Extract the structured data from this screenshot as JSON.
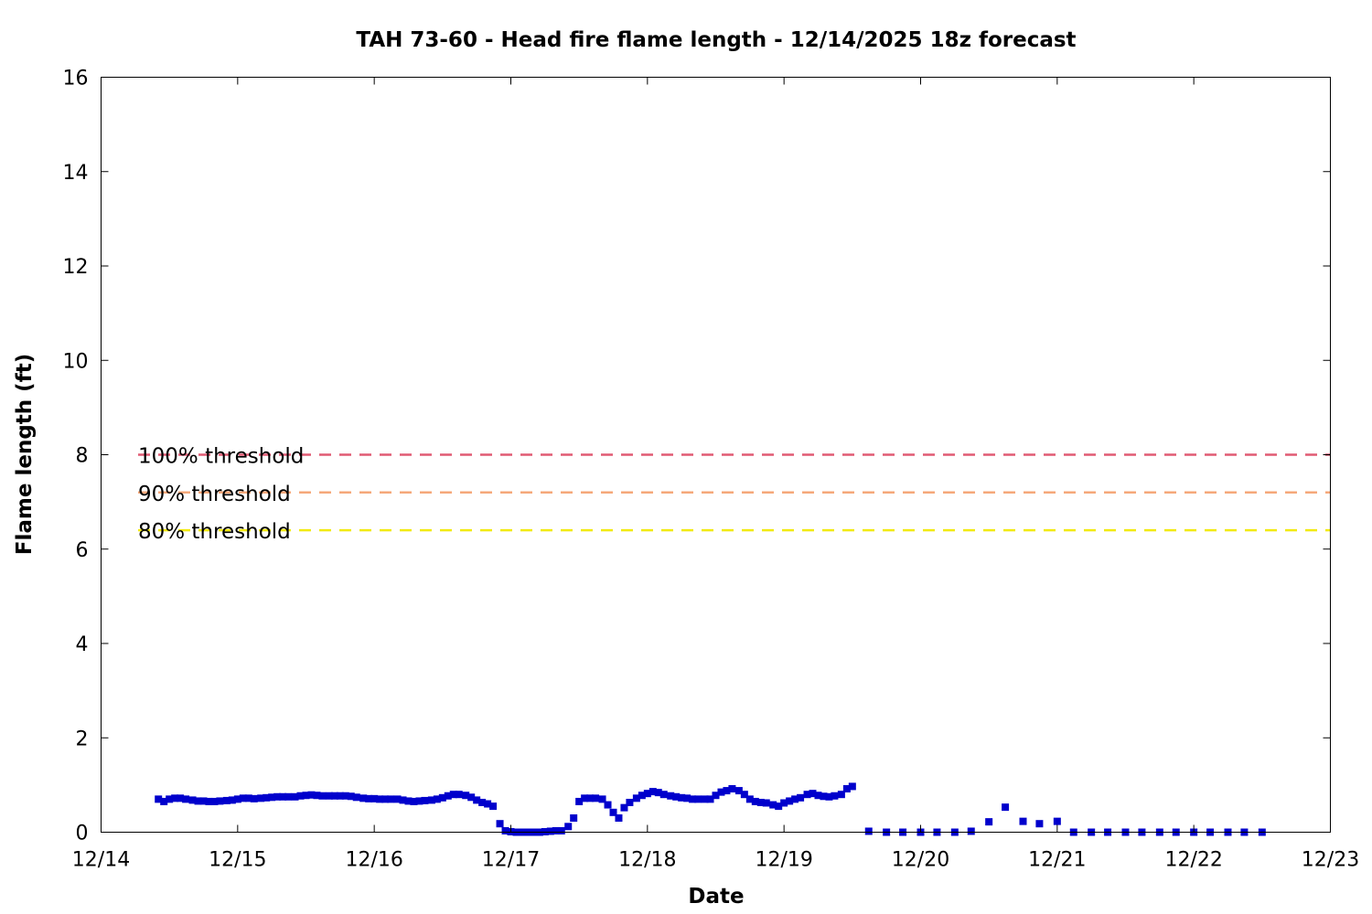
{
  "chart_data": {
    "type": "scatter",
    "title": "TAH 73-60 - Head fire flame length - 12/14/2025 18z forecast",
    "xlabel": "Date",
    "ylabel": "Flame length (ft)",
    "x_unit": "days after 12/14 00z",
    "xlim": [
      0,
      9
    ],
    "ylim": [
      0,
      16
    ],
    "x_ticks": [
      "12/14",
      "12/15",
      "12/16",
      "12/17",
      "12/18",
      "12/19",
      "12/20",
      "12/21",
      "12/22",
      "12/23"
    ],
    "y_ticks": [
      "0",
      "2",
      "4",
      "6",
      "8",
      "10",
      "12",
      "14",
      "16"
    ],
    "grid": false,
    "series": [
      {
        "color": "#0000cc",
        "marker": "square",
        "points": [
          [
            0.42,
            0.7
          ],
          [
            0.46,
            0.65
          ],
          [
            0.5,
            0.7
          ],
          [
            0.54,
            0.72
          ],
          [
            0.58,
            0.72
          ],
          [
            0.62,
            0.7
          ],
          [
            0.67,
            0.68
          ],
          [
            0.71,
            0.66
          ],
          [
            0.75,
            0.66
          ],
          [
            0.79,
            0.65
          ],
          [
            0.83,
            0.65
          ],
          [
            0.87,
            0.66
          ],
          [
            0.92,
            0.67
          ],
          [
            0.96,
            0.68
          ],
          [
            1.0,
            0.7
          ],
          [
            1.04,
            0.72
          ],
          [
            1.08,
            0.72
          ],
          [
            1.12,
            0.71
          ],
          [
            1.17,
            0.72
          ],
          [
            1.21,
            0.73
          ],
          [
            1.25,
            0.74
          ],
          [
            1.29,
            0.75
          ],
          [
            1.33,
            0.75
          ],
          [
            1.37,
            0.75
          ],
          [
            1.42,
            0.75
          ],
          [
            1.46,
            0.77
          ],
          [
            1.5,
            0.78
          ],
          [
            1.54,
            0.79
          ],
          [
            1.58,
            0.78
          ],
          [
            1.62,
            0.77
          ],
          [
            1.67,
            0.77
          ],
          [
            1.71,
            0.77
          ],
          [
            1.75,
            0.77
          ],
          [
            1.79,
            0.77
          ],
          [
            1.83,
            0.76
          ],
          [
            1.87,
            0.74
          ],
          [
            1.92,
            0.72
          ],
          [
            1.96,
            0.71
          ],
          [
            2.0,
            0.71
          ],
          [
            2.04,
            0.7
          ],
          [
            2.08,
            0.7
          ],
          [
            2.12,
            0.7
          ],
          [
            2.17,
            0.7
          ],
          [
            2.21,
            0.68
          ],
          [
            2.25,
            0.66
          ],
          [
            2.29,
            0.65
          ],
          [
            2.33,
            0.66
          ],
          [
            2.37,
            0.67
          ],
          [
            2.42,
            0.68
          ],
          [
            2.46,
            0.7
          ],
          [
            2.5,
            0.73
          ],
          [
            2.54,
            0.77
          ],
          [
            2.58,
            0.8
          ],
          [
            2.62,
            0.8
          ],
          [
            2.67,
            0.78
          ],
          [
            2.71,
            0.74
          ],
          [
            2.75,
            0.68
          ],
          [
            2.79,
            0.63
          ],
          [
            2.83,
            0.6
          ],
          [
            2.87,
            0.55
          ],
          [
            2.92,
            0.18
          ],
          [
            2.96,
            0.03
          ],
          [
            3.0,
            0.01
          ],
          [
            3.04,
            0.0
          ],
          [
            3.08,
            0.0
          ],
          [
            3.12,
            0.0
          ],
          [
            3.17,
            0.0
          ],
          [
            3.21,
            0.0
          ],
          [
            3.25,
            0.01
          ],
          [
            3.29,
            0.02
          ],
          [
            3.33,
            0.03
          ],
          [
            3.37,
            0.03
          ],
          [
            3.42,
            0.12
          ],
          [
            3.46,
            0.3
          ],
          [
            3.5,
            0.65
          ],
          [
            3.54,
            0.72
          ],
          [
            3.58,
            0.72
          ],
          [
            3.62,
            0.72
          ],
          [
            3.67,
            0.7
          ],
          [
            3.71,
            0.58
          ],
          [
            3.75,
            0.42
          ],
          [
            3.79,
            0.3
          ],
          [
            3.83,
            0.52
          ],
          [
            3.87,
            0.63
          ],
          [
            3.92,
            0.72
          ],
          [
            3.96,
            0.78
          ],
          [
            4.0,
            0.82
          ],
          [
            4.04,
            0.86
          ],
          [
            4.08,
            0.84
          ],
          [
            4.12,
            0.8
          ],
          [
            4.17,
            0.77
          ],
          [
            4.21,
            0.75
          ],
          [
            4.25,
            0.73
          ],
          [
            4.29,
            0.72
          ],
          [
            4.33,
            0.7
          ],
          [
            4.37,
            0.7
          ],
          [
            4.42,
            0.7
          ],
          [
            4.46,
            0.7
          ],
          [
            4.5,
            0.78
          ],
          [
            4.54,
            0.85
          ],
          [
            4.58,
            0.88
          ],
          [
            4.62,
            0.92
          ],
          [
            4.67,
            0.88
          ],
          [
            4.71,
            0.8
          ],
          [
            4.75,
            0.7
          ],
          [
            4.79,
            0.65
          ],
          [
            4.83,
            0.63
          ],
          [
            4.87,
            0.62
          ],
          [
            4.92,
            0.58
          ],
          [
            4.96,
            0.55
          ],
          [
            5.0,
            0.62
          ],
          [
            5.04,
            0.66
          ],
          [
            5.08,
            0.7
          ],
          [
            5.12,
            0.73
          ],
          [
            5.17,
            0.8
          ],
          [
            5.21,
            0.82
          ],
          [
            5.25,
            0.78
          ],
          [
            5.29,
            0.76
          ],
          [
            5.33,
            0.75
          ],
          [
            5.37,
            0.77
          ],
          [
            5.42,
            0.8
          ],
          [
            5.46,
            0.92
          ],
          [
            5.5,
            0.97
          ],
          [
            5.62,
            0.02
          ],
          [
            5.75,
            0.0
          ],
          [
            5.87,
            0.0
          ],
          [
            6.0,
            0.0
          ],
          [
            6.12,
            0.0
          ],
          [
            6.25,
            0.0
          ],
          [
            6.37,
            0.02
          ],
          [
            6.5,
            0.22
          ],
          [
            6.62,
            0.53
          ],
          [
            6.75,
            0.23
          ],
          [
            6.87,
            0.18
          ],
          [
            7.0,
            0.23
          ],
          [
            7.12,
            0.0
          ],
          [
            7.25,
            0.0
          ],
          [
            7.37,
            0.0
          ],
          [
            7.5,
            0.0
          ],
          [
            7.62,
            0.0
          ],
          [
            7.75,
            0.0
          ],
          [
            7.87,
            0.0
          ],
          [
            8.0,
            0.0
          ],
          [
            8.12,
            0.0
          ],
          [
            8.25,
            0.0
          ],
          [
            8.37,
            0.0
          ],
          [
            8.5,
            0.0
          ]
        ]
      }
    ],
    "thresholds": [
      {
        "label": "100% threshold",
        "value": 8.0,
        "color": "#e05a73"
      },
      {
        "label": "90% threshold",
        "value": 7.2,
        "color": "#f5a87a"
      },
      {
        "label": "80% threshold",
        "value": 6.4,
        "color": "#f2ea12"
      }
    ]
  }
}
